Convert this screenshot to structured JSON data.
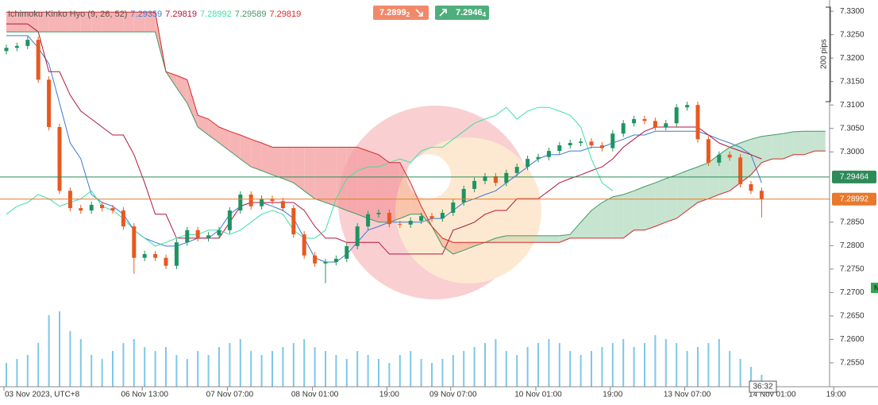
{
  "chart_data": {
    "type": "candlestick",
    "indicator_label": "Ichimoku Kinko Hyo (9, 26, 52)",
    "categories": [
      "03 Nov 2023, UTC+8",
      null,
      null,
      null,
      null,
      null,
      null,
      null,
      null,
      null,
      null,
      null,
      null,
      "06 Nov 13:00",
      null,
      null,
      null,
      null,
      null,
      null,
      null,
      "07 Nov 07:00",
      null,
      null,
      null,
      null,
      null,
      null,
      null,
      "08 Nov 01:00",
      null,
      null,
      null,
      null,
      null,
      null,
      "19:00",
      null,
      null,
      null,
      null,
      null,
      "09 Nov 07:00",
      null,
      null,
      null,
      null,
      null,
      null,
      null,
      "10 Nov 01:00",
      null,
      null,
      null,
      null,
      null,
      null,
      "19:00",
      null,
      null,
      null,
      null,
      null,
      null,
      "13 Nov 07:00",
      null,
      null,
      null,
      null,
      null,
      null,
      null,
      "14 Nov 01:00",
      null,
      null,
      null,
      null,
      null,
      "19:00"
    ],
    "open": [
      7.3215,
      7.3222,
      7.3226,
      7.3239,
      7.3154,
      7.3053,
      7.2917,
      7.288,
      7.2875,
      7.2887,
      7.288,
      7.2875,
      7.2841,
      7.2774,
      7.2782,
      7.2774,
      7.2757,
      7.2807,
      7.2833,
      7.2816,
      7.2822,
      7.2833,
      7.2875,
      7.2909,
      7.2884,
      7.29,
      7.2895,
      7.288,
      7.2824,
      7.2779,
      7.2762,
      7.2765,
      7.2772,
      7.2799,
      7.2841,
      7.2867,
      7.287,
      7.2846,
      7.2845,
      7.2853,
      7.2863,
      7.2858,
      7.287,
      7.2892,
      7.2921,
      7.2938,
      7.2948,
      7.2934,
      7.2955,
      7.2968,
      7.2985,
      7.2989,
      7.3002,
      7.3014,
      7.3019,
      7.3022,
      7.3014,
      7.3008,
      7.3039,
      7.3061,
      7.307,
      7.3066,
      7.3053,
      7.3061,
      7.3095,
      7.31,
      7.3027,
      7.2977,
      7.2994,
      7.2988,
      7.2931,
      7.2917,
      null,
      null,
      null,
      null,
      null,
      null,
      null
    ],
    "high": [
      7.3229,
      7.3233,
      7.3246,
      7.3246,
      7.3161,
      7.306,
      7.2924,
      7.2887,
      7.2894,
      7.2894,
      7.2887,
      7.2882,
      7.2848,
      7.2789,
      7.2789,
      7.2781,
      7.2814,
      7.284,
      7.284,
      7.2829,
      7.284,
      7.2882,
      7.2916,
      7.2916,
      7.2907,
      7.2907,
      7.2902,
      7.2887,
      7.2831,
      7.2786,
      7.2772,
      7.2779,
      7.2806,
      7.2848,
      7.2874,
      7.2877,
      7.2877,
      7.2853,
      7.286,
      7.287,
      7.287,
      7.2877,
      7.2899,
      7.2928,
      7.2945,
      7.2955,
      7.2955,
      7.2962,
      7.2975,
      7.2992,
      7.2996,
      7.3009,
      7.3021,
      7.3026,
      7.3029,
      7.3029,
      7.3021,
      7.3046,
      7.3068,
      7.3077,
      7.3077,
      7.3073,
      7.3068,
      7.3102,
      7.3107,
      7.3107,
      7.3034,
      7.3001,
      7.3001,
      7.2995,
      7.2938,
      7.2924,
      null,
      null,
      null,
      null,
      null,
      null,
      null
    ],
    "low": [
      7.3208,
      7.3215,
      7.3219,
      7.3147,
      7.3046,
      7.291,
      7.2873,
      7.2868,
      7.2868,
      7.2873,
      7.2868,
      7.2834,
      7.274,
      7.2767,
      7.2767,
      7.275,
      7.275,
      7.28,
      7.2809,
      7.2809,
      7.2815,
      7.2826,
      7.2868,
      7.2877,
      7.2877,
      7.2888,
      7.2873,
      7.2817,
      7.2772,
      7.2755,
      7.272,
      7.2758,
      7.2765,
      7.2792,
      7.2834,
      7.286,
      7.2839,
      7.2838,
      7.2838,
      7.2846,
      7.2851,
      7.2851,
      7.2863,
      7.2885,
      7.2914,
      7.2931,
      7.2927,
      7.2927,
      7.2948,
      7.2961,
      7.2978,
      7.2982,
      7.2995,
      7.3007,
      7.3012,
      7.3007,
      7.3001,
      7.3001,
      7.3032,
      7.3054,
      7.3059,
      7.3046,
      7.3046,
      7.3054,
      7.3088,
      7.302,
      7.297,
      7.297,
      7.2981,
      7.2924,
      7.291,
      7.286,
      null,
      null,
      null,
      null,
      null,
      null,
      null
    ],
    "close": [
      7.3222,
      7.3226,
      7.3239,
      7.3154,
      7.3053,
      7.2917,
      7.288,
      7.2875,
      7.2887,
      7.288,
      7.2875,
      7.2841,
      7.2774,
      7.2782,
      7.2774,
      7.2757,
      7.2807,
      7.2833,
      7.2816,
      7.2822,
      7.2833,
      7.2875,
      7.2909,
      7.2884,
      7.29,
      7.2895,
      7.288,
      7.2824,
      7.2779,
      7.2762,
      7.2765,
      7.2772,
      7.2799,
      7.2841,
      7.2867,
      7.287,
      7.2846,
      7.2845,
      7.2853,
      7.2863,
      7.2858,
      7.287,
      7.2892,
      7.2921,
      7.2938,
      7.2948,
      7.2934,
      7.2955,
      7.2968,
      7.2985,
      7.2989,
      7.3002,
      7.3014,
      7.3019,
      7.3022,
      7.3014,
      7.3008,
      7.3039,
      7.3061,
      7.307,
      7.3066,
      7.3053,
      7.3061,
      7.3095,
      7.31,
      7.3027,
      7.2977,
      7.2994,
      7.2988,
      7.2931,
      7.2917,
      7.2899,
      null,
      null,
      null,
      null,
      null,
      null,
      null
    ],
    "up_color": "#1e9460",
    "down_color": "#e8581f",
    "volume": {
      "color": "#7cc8e8",
      "values": [
        30,
        35,
        40,
        55,
        90,
        95,
        70,
        60,
        40,
        35,
        45,
        55,
        60,
        50,
        45,
        50,
        40,
        35,
        45,
        40,
        50,
        55,
        60,
        45,
        40,
        45,
        50,
        55,
        60,
        50,
        45,
        40,
        35,
        45,
        40,
        35,
        30,
        40,
        45,
        35,
        30,
        35,
        40,
        45,
        50,
        55,
        60,
        45,
        40,
        50,
        55,
        60,
        55,
        45,
        40,
        45,
        50,
        55,
        60,
        50,
        55,
        65,
        60,
        55,
        45,
        50,
        55,
        60,
        45,
        35,
        25,
        15,
        null,
        null,
        null,
        null,
        null,
        null,
        null
      ]
    },
    "lines": [
      {
        "color": "#3a78d8",
        "last_value": 7.29359,
        "values": [
          7.3248,
          7.3248,
          7.3248,
          7.3222,
          7.3188,
          7.3104,
          7.3019,
          7.2985,
          7.2909,
          7.2892,
          7.2884,
          7.2867,
          7.2833,
          7.2816,
          7.2807,
          7.2799,
          7.2799,
          7.2807,
          7.2816,
          7.2816,
          7.2833,
          7.2867,
          7.2884,
          7.2892,
          7.2892,
          7.2884,
          7.2875,
          7.2858,
          7.2816,
          7.2774,
          7.2765,
          7.2765,
          7.2782,
          7.2807,
          7.2833,
          7.2841,
          7.285,
          7.285,
          7.285,
          7.285,
          7.2858,
          7.2858,
          7.2875,
          7.2892,
          7.29,
          7.2909,
          7.2917,
          7.2934,
          7.2951,
          7.2968,
          7.2985,
          7.2994,
          7.2994,
          7.3002,
          7.3002,
          7.301,
          7.301,
          7.3019,
          7.3027,
          7.3036,
          7.3036,
          7.3044,
          7.3044,
          7.3044,
          7.3044,
          7.3044,
          7.3036,
          7.3027,
          7.3019,
          7.301,
          7.2994,
          7.2934,
          null,
          null,
          null,
          null,
          null,
          null,
          null
        ]
      },
      {
        "color": "#b0173c",
        "last_value": 7.29819,
        "values": [
          7.3273,
          7.3273,
          7.3273,
          7.3256,
          7.3171,
          7.3171,
          7.3121,
          7.3087,
          7.307,
          7.3053,
          7.3036,
          7.3036,
          7.2994,
          7.2934,
          7.2867,
          7.2867,
          7.2816,
          7.2816,
          7.2816,
          7.2816,
          7.2816,
          7.285,
          7.2884,
          7.2892,
          7.2892,
          7.2892,
          7.2892,
          7.2892,
          7.2875,
          7.2841,
          7.2816,
          7.2816,
          7.2807,
          7.2807,
          7.2807,
          7.2807,
          7.2782,
          7.2782,
          7.2782,
          7.2782,
          7.2782,
          7.2782,
          7.2833,
          7.2841,
          7.285,
          7.2867,
          7.2875,
          7.2875,
          7.29,
          7.29,
          7.29,
          7.2917,
          7.2934,
          7.2943,
          7.2951,
          7.296,
          7.2968,
          7.2985,
          7.301,
          7.3027,
          7.3044,
          7.3053,
          7.3053,
          7.3053,
          7.3053,
          7.3053,
          7.3036,
          7.3019,
          7.301,
          7.3002,
          7.2994,
          7.2985,
          null,
          null,
          null,
          null,
          null,
          null,
          null
        ]
      },
      {
        "color": "#3ee0a4",
        "last_value": 7.28992,
        "values": [
          7.2867,
          7.2884,
          7.2892,
          7.2909,
          7.29,
          7.2884,
          7.2892,
          7.29,
          7.2917,
          7.2884,
          7.2875,
          7.2858,
          7.2833,
          7.2816,
          7.2799,
          7.2807,
          7.2816,
          7.2824,
          7.2824,
          7.2833,
          7.2833,
          7.2824,
          7.2833,
          7.285,
          7.2867,
          7.2875,
          7.2867,
          7.2833,
          7.2816,
          7.2816,
          7.2833,
          7.29,
          7.2943,
          7.296,
          7.2968,
          7.2968,
          7.2977,
          7.2985,
          7.2977,
          7.3002,
          7.301,
          7.301,
          7.3027,
          7.3044,
          7.3061,
          7.307,
          7.3078,
          7.3095,
          7.307,
          7.3087,
          7.3095,
          7.3095,
          7.3087,
          7.3078,
          7.3053,
          7.2985,
          7.2934,
          7.2917,
          null,
          null,
          null,
          null,
          null,
          null,
          null,
          null,
          null,
          null,
          null,
          null,
          null,
          null,
          null,
          null,
          null,
          null,
          null,
          null,
          null
        ]
      },
      {
        "color": "#3f9a66",
        "last_value": 7.29589,
        "values": [
          7.3256,
          7.3256,
          7.3256,
          7.3256,
          7.3256,
          7.3256,
          7.3256,
          7.3256,
          7.3256,
          7.3256,
          7.3256,
          7.3256,
          7.3256,
          7.3256,
          7.3256,
          7.3171,
          7.3137,
          7.3104,
          7.3053,
          7.3036,
          7.3019,
          7.3002,
          7.2985,
          7.2968,
          7.296,
          7.2951,
          7.2943,
          7.2934,
          7.2917,
          7.29,
          7.2892,
          7.2884,
          7.2875,
          7.2867,
          7.2858,
          7.285,
          7.285,
          7.2858,
          7.2867,
          7.2867,
          7.2841,
          7.2799,
          7.2782,
          7.279,
          7.2799,
          7.2807,
          7.2816,
          7.2821,
          7.2821,
          7.2821,
          7.2821,
          7.2821,
          7.2821,
          7.2824,
          7.285,
          7.2875,
          7.2892,
          7.2904,
          7.2909,
          7.2917,
          7.2926,
          7.2934,
          7.2943,
          7.2951,
          7.296,
          7.2968,
          7.2977,
          7.2994,
          7.301,
          7.3019,
          7.3027,
          7.3033,
          7.3036,
          7.3039,
          7.3043,
          7.3044,
          7.3044,
          7.3044,
          null
        ]
      },
      {
        "color": "#d42a2a",
        "last_value": 7.29819,
        "values": [
          7.3298,
          7.3298,
          7.3298,
          7.3298,
          7.3298,
          7.3298,
          7.3298,
          7.3298,
          7.3298,
          7.3298,
          7.3298,
          7.3298,
          7.3298,
          7.3298,
          7.3298,
          7.3171,
          7.3163,
          7.3154,
          7.3078,
          7.307,
          7.3053,
          7.3044,
          7.3036,
          7.3027,
          7.3019,
          7.301,
          7.301,
          7.301,
          7.301,
          7.301,
          7.301,
          7.301,
          7.301,
          7.301,
          7.3002,
          7.2994,
          7.2977,
          7.2977,
          7.2934,
          7.2884,
          7.2841,
          7.2816,
          7.2807,
          7.2807,
          7.2807,
          7.2807,
          7.2807,
          7.2807,
          7.2807,
          7.2807,
          7.2807,
          7.2807,
          7.2807,
          7.2816,
          7.2816,
          7.2816,
          7.2816,
          7.2816,
          7.2816,
          7.2833,
          7.2833,
          7.2841,
          7.285,
          7.2858,
          7.2875,
          7.2892,
          7.29,
          7.2909,
          7.2917,
          7.2934,
          7.2951,
          7.2977,
          7.2985,
          7.2985,
          7.2994,
          7.2994,
          7.3002,
          7.3002,
          null
        ]
      }
    ],
    "cloud": {
      "span_a": 3,
      "span_b": 4,
      "bull_color": "#c6e4d0",
      "bear_color": "#f7b4b4"
    },
    "ylim": [
      7.2499,
      7.3324
    ],
    "yticks": [
      {
        "value": 7.33,
        "label": "7.3300"
      },
      {
        "value": 7.325,
        "label": "7.3250"
      },
      {
        "value": 7.32,
        "label": "7.3200"
      },
      {
        "value": 7.315,
        "label": "7.3150"
      },
      {
        "value": 7.31,
        "label": "7.3100"
      },
      {
        "value": 7.305,
        "label": "7.3050"
      },
      {
        "value": 7.3,
        "label": "7.3000"
      },
      {
        "value": 7.285,
        "label": "7.2850"
      },
      {
        "value": 7.28,
        "label": "7.2800"
      },
      {
        "value": 7.275,
        "label": "7.2750"
      },
      {
        "value": 7.27,
        "label": "7.2700"
      },
      {
        "value": 7.265,
        "label": "7.2650"
      },
      {
        "value": 7.26,
        "label": "7.2600"
      },
      {
        "value": 7.255,
        "label": "7.2550"
      }
    ],
    "price_lines": [
      {
        "value": 7.29464,
        "color": "#2f8a5a"
      },
      {
        "value": 7.28992,
        "color": "#e8792a"
      }
    ],
    "sell": {
      "price": "7.2899",
      "digit": "2",
      "color": "#f0896a"
    },
    "buy": {
      "price": "7.2946",
      "digit": "4",
      "color": "#4fae7c"
    },
    "pips_label": "200 pips",
    "timer": "36:32",
    "badge": {
      "text": "N",
      "color": "#2faa4f"
    }
  }
}
